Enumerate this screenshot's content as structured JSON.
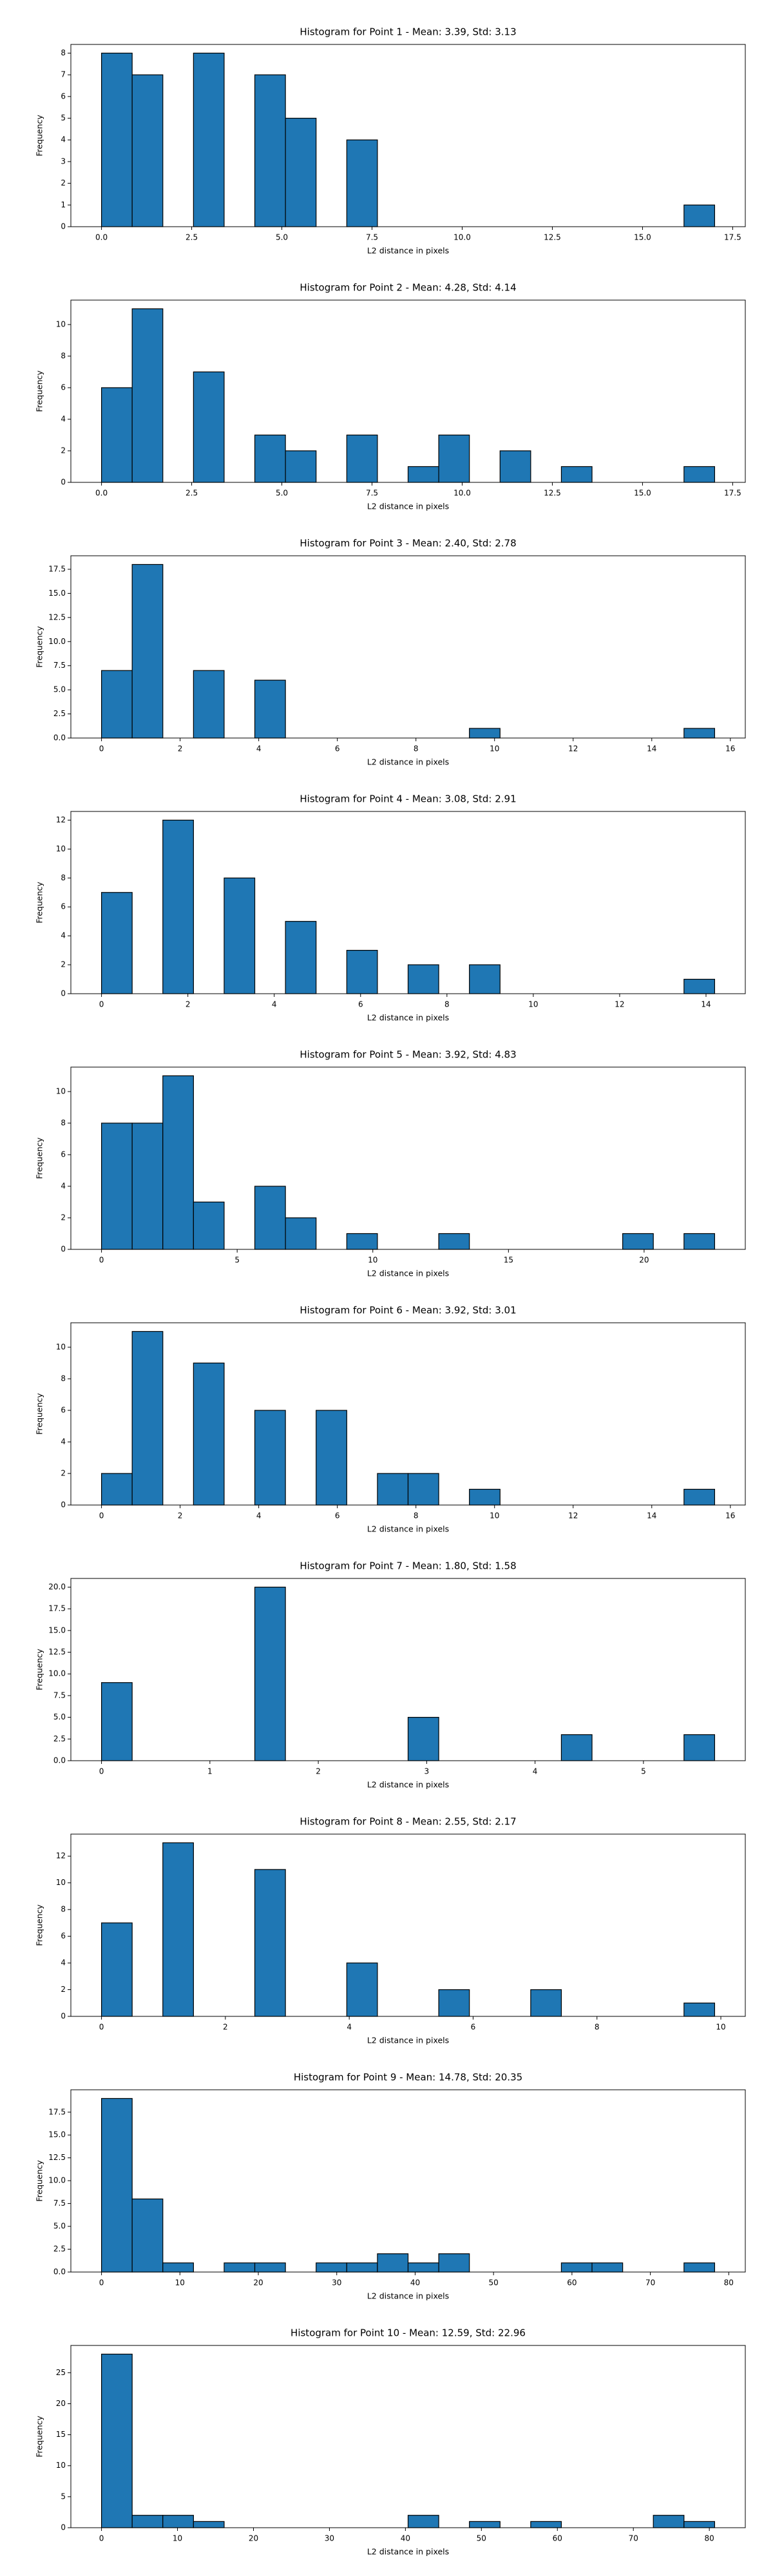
{
  "chart_data": [
    {
      "type": "histogram",
      "title": "Histogram for Point 1 - Mean: 3.39, Std: 3.13",
      "xlabel": "L2 distance in pixels",
      "ylabel": "Frequency",
      "color": "#1f77b4",
      "edgecolor": "#000000",
      "bins": [
        0,
        0.85,
        1.7,
        2.55,
        3.4,
        4.25,
        5.1,
        5.95,
        6.8,
        7.65,
        8.5,
        9.35,
        10.2,
        11.05,
        11.9,
        12.75,
        13.6,
        14.45,
        15.3,
        16.15,
        17
      ],
      "values": [
        8,
        7,
        0,
        8,
        0,
        7,
        5,
        0,
        4,
        0,
        0,
        0,
        0,
        0,
        0,
        0,
        0,
        0,
        0,
        1
      ],
      "xlim": [
        -0.85,
        17.85
      ],
      "xticks": [
        {
          "value": 0,
          "label": "0.0"
        },
        2.5,
        {
          "value": 5,
          "label": "5.0"
        },
        7.5,
        {
          "value": 10,
          "label": "10.0"
        },
        12.5,
        {
          "value": 15,
          "label": "15.0"
        },
        17.5
      ],
      "ylim": [
        0,
        8.4
      ],
      "yticks": [
        0,
        1,
        2,
        3,
        4,
        5,
        6,
        7,
        8
      ]
    },
    {
      "type": "histogram",
      "title": "Histogram for Point 2 - Mean: 4.28, Std: 4.14",
      "xlabel": "L2 distance in pixels",
      "ylabel": "Frequency",
      "color": "#1f77b4",
      "edgecolor": "#000000",
      "bins": [
        0,
        0.85,
        1.7,
        2.55,
        3.4,
        4.25,
        5.1,
        5.95,
        6.8,
        7.65,
        8.5,
        9.35,
        10.2,
        11.05,
        11.9,
        12.75,
        13.6,
        14.45,
        15.3,
        16.15,
        17
      ],
      "values": [
        6,
        11,
        0,
        7,
        0,
        3,
        2,
        0,
        3,
        0,
        1,
        3,
        0,
        2,
        0,
        1,
        0,
        0,
        0,
        1
      ],
      "xlim": [
        -0.85,
        17.85
      ],
      "xticks": [
        {
          "value": 0,
          "label": "0.0"
        },
        2.5,
        {
          "value": 5,
          "label": "5.0"
        },
        7.5,
        {
          "value": 10,
          "label": "10.0"
        },
        12.5,
        {
          "value": 15,
          "label": "15.0"
        },
        17.5
      ],
      "ylim": [
        0,
        11.55
      ],
      "yticks": [
        0,
        2,
        4,
        6,
        8,
        10
      ]
    },
    {
      "type": "histogram",
      "title": "Histogram for Point 3 - Mean: 2.40, Std: 2.78",
      "xlabel": "L2 distance in pixels",
      "ylabel": "Frequency",
      "color": "#1f77b4",
      "edgecolor": "#000000",
      "bins": [
        0,
        0.78,
        1.56,
        2.34,
        3.12,
        3.9,
        4.68,
        5.46,
        6.24,
        7.02,
        7.8,
        8.58,
        9.36,
        10.14,
        10.92,
        11.7,
        12.48,
        13.26,
        14.04,
        14.82,
        15.6
      ],
      "values": [
        7,
        18,
        0,
        7,
        0,
        6,
        0,
        0,
        0,
        0,
        0,
        0,
        1,
        0,
        0,
        0,
        0,
        0,
        0,
        1
      ],
      "xlim": [
        -0.78,
        16.38
      ],
      "xticks": [
        0,
        2,
        4,
        6,
        8,
        10,
        12,
        14,
        16
      ],
      "ylim": [
        0,
        18.9
      ],
      "yticks": [
        {
          "value": 0,
          "label": "0.0"
        },
        2.5,
        {
          "value": 5,
          "label": "5.0"
        },
        7.5,
        {
          "value": 10,
          "label": "10.0"
        },
        12.5,
        {
          "value": 15,
          "label": "15.0"
        },
        17.5
      ]
    },
    {
      "type": "histogram",
      "title": "Histogram for Point 4 - Mean: 3.08, Std: 2.91",
      "xlabel": "L2 distance in pixels",
      "ylabel": "Frequency",
      "color": "#1f77b4",
      "edgecolor": "#000000",
      "bins": [
        0,
        0.71,
        1.42,
        2.13,
        2.84,
        3.55,
        4.26,
        4.97,
        5.68,
        6.39,
        7.1,
        7.81,
        8.52,
        9.23,
        9.94,
        10.65,
        11.36,
        12.07,
        12.78,
        13.49,
        14.2
      ],
      "values": [
        7,
        0,
        12,
        0,
        8,
        0,
        5,
        0,
        3,
        0,
        2,
        0,
        2,
        0,
        0,
        0,
        0,
        0,
        0,
        1
      ],
      "xlim": [
        -0.71,
        14.91
      ],
      "xticks": [
        0,
        2,
        4,
        6,
        8,
        10,
        12,
        14
      ],
      "ylim": [
        0,
        12.6
      ],
      "yticks": [
        0,
        2,
        4,
        6,
        8,
        10,
        12
      ]
    },
    {
      "type": "histogram",
      "title": "Histogram for Point 5 - Mean: 3.92, Std: 4.83",
      "xlabel": "L2 distance in pixels",
      "ylabel": "Frequency",
      "color": "#1f77b4",
      "edgecolor": "#000000",
      "bins": [
        0,
        1.13,
        2.26,
        3.39,
        4.52,
        5.65,
        6.78,
        7.91,
        9.04,
        10.17,
        11.3,
        12.43,
        13.56,
        14.69,
        15.82,
        16.95,
        18.08,
        19.21,
        20.34,
        21.47,
        22.6
      ],
      "values": [
        8,
        8,
        11,
        3,
        0,
        4,
        2,
        0,
        1,
        0,
        0,
        1,
        0,
        0,
        0,
        0,
        0,
        1,
        0,
        1
      ],
      "xlim": [
        -1.13,
        23.73
      ],
      "xticks": [
        0,
        5,
        10,
        15,
        20
      ],
      "ylim": [
        0,
        11.55
      ],
      "yticks": [
        0,
        2,
        4,
        6,
        8,
        10
      ]
    },
    {
      "type": "histogram",
      "title": "Histogram for Point 6 - Mean: 3.92, Std: 3.01",
      "xlabel": "L2 distance in pixels",
      "ylabel": "Frequency",
      "color": "#1f77b4",
      "edgecolor": "#000000",
      "bins": [
        0,
        0.78,
        1.56,
        2.34,
        3.12,
        3.9,
        4.68,
        5.46,
        6.24,
        7.02,
        7.8,
        8.58,
        9.36,
        10.14,
        10.92,
        11.7,
        12.48,
        13.26,
        14.04,
        14.82,
        15.6
      ],
      "values": [
        2,
        11,
        0,
        9,
        0,
        6,
        0,
        6,
        0,
        2,
        2,
        0,
        1,
        0,
        0,
        0,
        0,
        0,
        0,
        1
      ],
      "xlim": [
        -0.78,
        16.38
      ],
      "xticks": [
        0,
        2,
        4,
        6,
        8,
        10,
        12,
        14,
        16
      ],
      "ylim": [
        0,
        11.55
      ],
      "yticks": [
        0,
        2,
        4,
        6,
        8,
        10
      ]
    },
    {
      "type": "histogram",
      "title": "Histogram for Point 7 - Mean: 1.80, Std: 1.58",
      "xlabel": "L2 distance in pixels",
      "ylabel": "Frequency",
      "color": "#1f77b4",
      "edgecolor": "#000000",
      "bins": [
        0,
        0.2828,
        0.5657,
        0.8485,
        1.1314,
        1.4142,
        1.697,
        1.9799,
        2.2627,
        2.5456,
        2.8284,
        3.1113,
        3.3941,
        3.677,
        3.9598,
        4.2426,
        4.5255,
        4.8083,
        5.0912,
        5.374,
        5.6569
      ],
      "values": [
        9,
        0,
        0,
        0,
        0,
        20,
        0,
        0,
        0,
        0,
        5,
        0,
        0,
        0,
        0,
        3,
        0,
        0,
        0,
        3
      ],
      "xlim": [
        -0.2828,
        5.9397
      ],
      "xticks": [
        0,
        1,
        2,
        3,
        4,
        5
      ],
      "ylim": [
        0,
        21
      ],
      "yticks": [
        {
          "value": 0,
          "label": "0.0"
        },
        2.5,
        {
          "value": 5,
          "label": "5.0"
        },
        7.5,
        {
          "value": 10,
          "label": "10.0"
        },
        12.5,
        {
          "value": 15,
          "label": "15.0"
        },
        17.5,
        {
          "value": 20,
          "label": "20.0"
        }
      ]
    },
    {
      "type": "histogram",
      "title": "Histogram for Point 8 - Mean: 2.55, Std: 2.17",
      "xlabel": "L2 distance in pixels",
      "ylabel": "Frequency",
      "color": "#1f77b4",
      "edgecolor": "#000000",
      "bins": [
        0,
        0.495,
        0.99,
        1.485,
        1.98,
        2.475,
        2.97,
        3.465,
        3.96,
        4.455,
        4.95,
        5.445,
        5.94,
        6.435,
        6.93,
        7.425,
        7.92,
        8.415,
        8.91,
        9.405,
        9.9
      ],
      "values": [
        7,
        0,
        13,
        0,
        0,
        11,
        0,
        0,
        4,
        0,
        0,
        2,
        0,
        0,
        2,
        0,
        0,
        0,
        0,
        1
      ],
      "xlim": [
        -0.495,
        10.395
      ],
      "xticks": [
        0,
        2,
        4,
        6,
        8,
        10
      ],
      "ylim": [
        0,
        13.65
      ],
      "yticks": [
        0,
        2,
        4,
        6,
        8,
        10,
        12
      ]
    },
    {
      "type": "histogram",
      "title": "Histogram for Point 9 - Mean: 14.78, Std: 20.35",
      "xlabel": "L2 distance in pixels",
      "ylabel": "Frequency",
      "color": "#1f77b4",
      "edgecolor": "#000000",
      "bins": [
        0,
        3.91,
        7.82,
        11.73,
        15.64,
        19.55,
        23.46,
        27.37,
        31.28,
        35.19,
        39.1,
        43.01,
        46.92,
        50.83,
        54.74,
        58.65,
        62.56,
        66.47,
        70.38,
        74.29,
        78.2
      ],
      "values": [
        19,
        8,
        1,
        0,
        1,
        1,
        0,
        1,
        1,
        2,
        1,
        2,
        0,
        0,
        0,
        1,
        1,
        0,
        0,
        1
      ],
      "xlim": [
        -3.91,
        82.11
      ],
      "xticks": [
        0,
        10,
        20,
        30,
        40,
        50,
        60,
        70,
        80
      ],
      "ylim": [
        0,
        19.95
      ],
      "yticks": [
        {
          "value": 0,
          "label": "0.0"
        },
        2.5,
        {
          "value": 5,
          "label": "5.0"
        },
        7.5,
        {
          "value": 10,
          "label": "10.0"
        },
        12.5,
        {
          "value": 15,
          "label": "15.0"
        },
        17.5
      ]
    },
    {
      "type": "histogram",
      "title": "Histogram for Point 10 - Mean: 12.59, Std: 22.96",
      "xlabel": "L2 distance in pixels",
      "ylabel": "Frequency",
      "color": "#1f77b4",
      "edgecolor": "#000000",
      "bins": [
        0,
        4.035,
        8.07,
        12.105,
        16.14,
        20.175,
        24.21,
        28.245,
        32.28,
        36.315,
        40.35,
        44.385,
        48.42,
        52.455,
        56.49,
        60.525,
        64.56,
        68.595,
        72.63,
        76.665,
        80.7
      ],
      "values": [
        28,
        2,
        2,
        1,
        0,
        0,
        0,
        0,
        0,
        0,
        2,
        0,
        1,
        0,
        1,
        0,
        0,
        0,
        2,
        1
      ],
      "xlim": [
        -4.035,
        84.735
      ],
      "xticks": [
        0,
        10,
        20,
        30,
        40,
        50,
        60,
        70,
        80
      ],
      "ylim": [
        0,
        29.4
      ],
      "yticks": [
        0,
        5,
        10,
        15,
        20,
        25
      ]
    }
  ]
}
